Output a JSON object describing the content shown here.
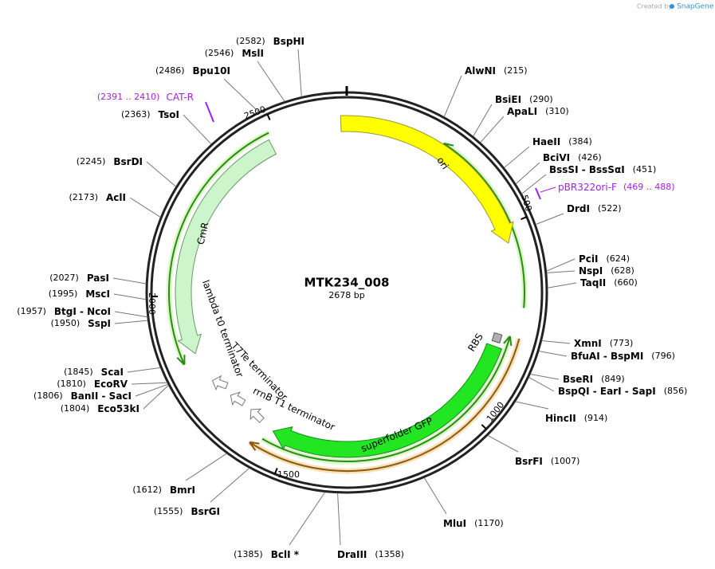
{
  "credit": {
    "prefix": "Created by",
    "brand": "SnapGene"
  },
  "plasmid": {
    "name": "MTK234_008",
    "size": "2678 bp"
  },
  "ticks": [
    "500",
    "1000",
    "1500",
    "2000",
    "2500"
  ],
  "features": [
    "ori",
    "superfolder GFP",
    "CmR",
    "RBS",
    "lambda t0 terminator",
    "T7Te terminator",
    "rrnB T1 terminator"
  ],
  "primers": [
    {
      "name": "CAT-R",
      "range": "(2391 .. 2410)"
    },
    {
      "name": "pBR322ori-F",
      "range": "(469 .. 488)"
    }
  ],
  "sites": [
    {
      "name": "AlwNI",
      "position": "(215)"
    },
    {
      "name": "BsiEI",
      "position": "(290)"
    },
    {
      "name": "ApaLI",
      "position": "(310)"
    },
    {
      "name": "HaeII",
      "position": "(384)"
    },
    {
      "name": "BciVI",
      "position": "(426)"
    },
    {
      "name": "BssSI - BssSαI",
      "position": "(451)"
    },
    {
      "name": "DrdI",
      "position": "(522)"
    },
    {
      "name": "PciI",
      "position": "(624)"
    },
    {
      "name": "NspI",
      "position": "(628)"
    },
    {
      "name": "TaqII",
      "position": "(660)"
    },
    {
      "name": "XmnI",
      "position": "(773)"
    },
    {
      "name": "BfuAI - BspMI",
      "position": "(796)"
    },
    {
      "name": "BseRI",
      "position": "(849)"
    },
    {
      "name": "BspQI - EarI - SapI",
      "position": "(856)"
    },
    {
      "name": "HincII",
      "position": "(914)"
    },
    {
      "name": "BsrFI",
      "position": "(1007)"
    },
    {
      "name": "MluI",
      "position": "(1170)"
    },
    {
      "name": "DraIII",
      "position": "(1358)"
    },
    {
      "name": "BclI *",
      "position": "(1385)"
    },
    {
      "name": "BsrGI",
      "position": "(1555)"
    },
    {
      "name": "BmrI",
      "position": "(1612)"
    },
    {
      "name": "Eco53kI",
      "position": "(1804)"
    },
    {
      "name": "BanII - SacI",
      "position": "(1806)"
    },
    {
      "name": "EcoRV",
      "position": "(1810)"
    },
    {
      "name": "ScaI",
      "position": "(1845)"
    },
    {
      "name": "SspI",
      "position": "(1950)"
    },
    {
      "name": "BtgI - NcoI",
      "position": "(1957)"
    },
    {
      "name": "MscI",
      "position": "(1995)"
    },
    {
      "name": "PasI",
      "position": "(2027)"
    },
    {
      "name": "AclI",
      "position": "(2173)"
    },
    {
      "name": "BsrDI",
      "position": "(2245)"
    },
    {
      "name": "TsoI",
      "position": "(2363)"
    },
    {
      "name": "Bpu10I",
      "position": "(2486)"
    },
    {
      "name": "MslI",
      "position": "(2546)"
    },
    {
      "name": "BspHI",
      "position": "(2582)"
    }
  ]
}
